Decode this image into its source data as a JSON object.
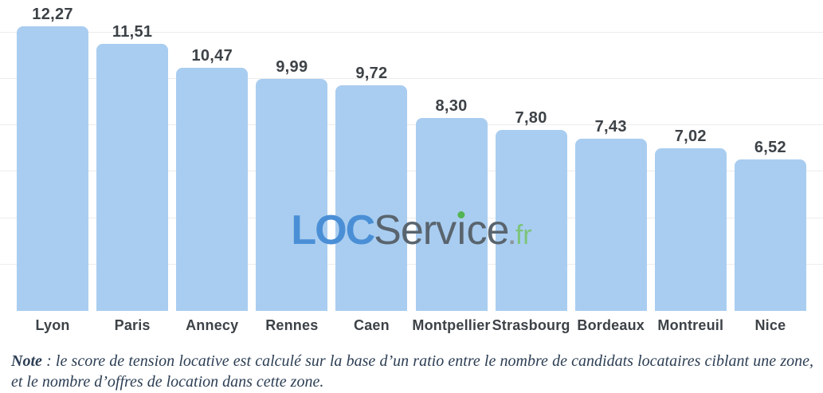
{
  "chart_data": {
    "type": "bar",
    "title": "",
    "xlabel": "",
    "ylabel": "",
    "categories": [
      "Lyon",
      "Paris",
      "Annecy",
      "Rennes",
      "Caen",
      "Montpellier",
      "Strasbourg",
      "Bordeaux",
      "Montreuil",
      "Nice"
    ],
    "values": [
      12.27,
      11.51,
      10.47,
      9.99,
      9.72,
      8.3,
      7.8,
      7.43,
      7.02,
      6.52
    ],
    "value_labels": [
      "12,27",
      "11,51",
      "10,47",
      "9,99",
      "9,72",
      "8,30",
      "7,80",
      "7,43",
      "7,02",
      "6,52"
    ],
    "ylim": [
      0,
      13.4
    ],
    "gridline_values": [
      2,
      4,
      6,
      8,
      10,
      12
    ],
    "grid": "horizontal-faint",
    "legend": "none",
    "bar_color": "#A9CDF0",
    "label_color": "#3D4247"
  },
  "logo": {
    "loc": "LOC",
    "service_pre": "Serv",
    "service_i": "ı",
    "service_post": "ce",
    "tld_dot": ".",
    "tld": "fr",
    "loc_color": "#4A8FD6",
    "service_color": "#59646E",
    "green_color": "#52B452"
  },
  "note": {
    "label": "Note",
    "text": " : le score de tension locative est calculé sur la base d’un ratio entre le nombre de candidats locataires ciblant une zone, et le nombre d’offres de location dans cette zone."
  }
}
